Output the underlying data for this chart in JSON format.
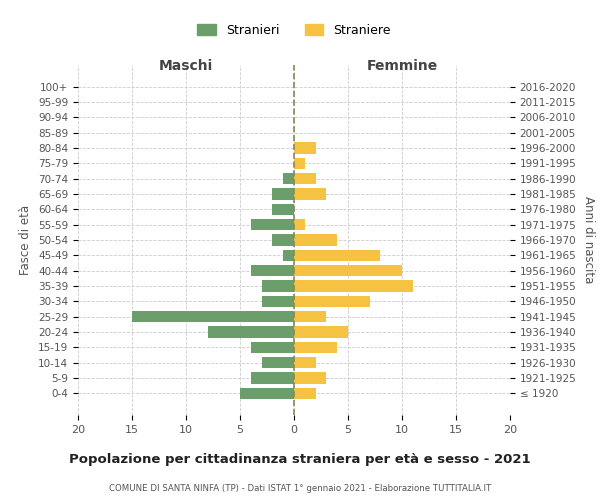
{
  "age_groups": [
    "100+",
    "95-99",
    "90-94",
    "85-89",
    "80-84",
    "75-79",
    "70-74",
    "65-69",
    "60-64",
    "55-59",
    "50-54",
    "45-49",
    "40-44",
    "35-39",
    "30-34",
    "25-29",
    "20-24",
    "15-19",
    "10-14",
    "5-9",
    "0-4"
  ],
  "birth_years": [
    "≤ 1920",
    "1921-1925",
    "1926-1930",
    "1931-1935",
    "1936-1940",
    "1941-1945",
    "1946-1950",
    "1951-1955",
    "1956-1960",
    "1961-1965",
    "1966-1970",
    "1971-1975",
    "1976-1980",
    "1981-1985",
    "1986-1990",
    "1991-1995",
    "1996-2000",
    "2001-2005",
    "2006-2010",
    "2011-2015",
    "2016-2020"
  ],
  "maschi": [
    0,
    0,
    0,
    0,
    0,
    0,
    1,
    2,
    2,
    4,
    2,
    1,
    4,
    3,
    3,
    15,
    8,
    4,
    3,
    4,
    5
  ],
  "femmine": [
    0,
    0,
    0,
    0,
    2,
    1,
    2,
    3,
    0,
    1,
    4,
    8,
    10,
    11,
    7,
    3,
    5,
    4,
    2,
    3,
    2
  ],
  "maschi_color": "#6b9e6b",
  "femmine_color": "#f5c242",
  "title": "Popolazione per cittadinanza straniera per età e sesso - 2021",
  "subtitle": "COMUNE DI SANTA NINFA (TP) - Dati ISTAT 1° gennaio 2021 - Elaborazione TUTTITALIA.IT",
  "xlabel_left": "Maschi",
  "xlabel_right": "Femmine",
  "ylabel_left": "Fasce di età",
  "ylabel_right": "Anni di nascita",
  "legend_maschi": "Stranieri",
  "legend_femmine": "Straniere",
  "xlim": 20,
  "background_color": "#ffffff",
  "grid_color": "#cccccc",
  "bar_height": 0.75
}
